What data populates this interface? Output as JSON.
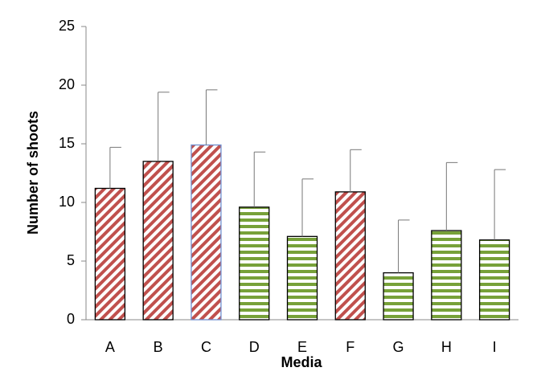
{
  "chart_data": {
    "type": "bar",
    "x_label": "Media",
    "y_label": "Number of shoots",
    "categories": [
      "A",
      "B",
      "C",
      "D",
      "E",
      "F",
      "G",
      "H",
      "I"
    ],
    "values": [
      11.2,
      13.5,
      14.9,
      9.6,
      7.1,
      10.9,
      4.0,
      7.6,
      6.8
    ],
    "errors": [
      3.5,
      5.9,
      4.7,
      4.7,
      4.9,
      3.6,
      4.5,
      5.8,
      6.0
    ],
    "colors": [
      "#c0504d",
      "#c0504d",
      "#c0504d",
      "#77a139",
      "#77a139",
      "#c0504d",
      "#77a139",
      "#77a139",
      "#77a139"
    ],
    "patterns": [
      "diagonal",
      "diagonal",
      "diagonal",
      "horizontal",
      "horizontal",
      "diagonal",
      "horizontal",
      "horizontal",
      "horizontal"
    ],
    "edge_colors": [
      "#000000",
      "#000000",
      "#6f8fd0",
      "#000000",
      "#000000",
      "#000000",
      "#000000",
      "#000000",
      "#000000"
    ],
    "ylim": [
      0,
      25
    ],
    "yticks": [
      0,
      5,
      10,
      15,
      20,
      25
    ],
    "grid": false
  }
}
